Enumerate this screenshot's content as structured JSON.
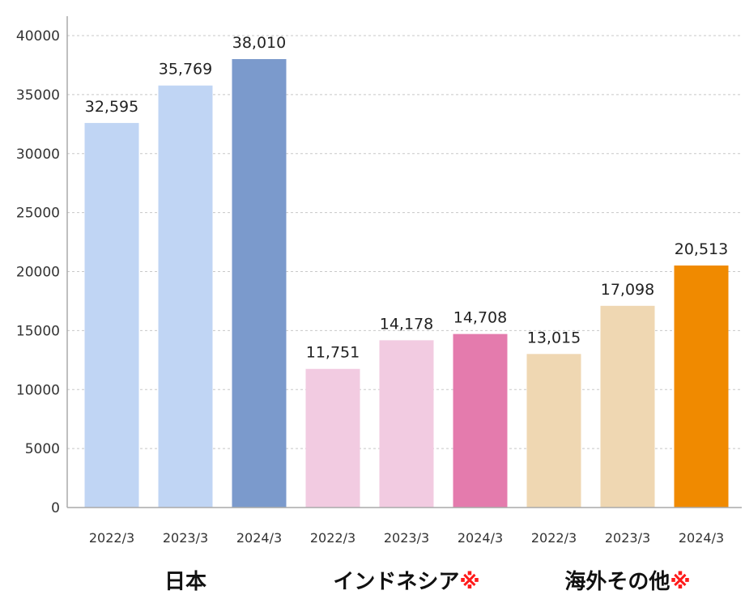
{
  "chart_data": {
    "type": "bar",
    "ylim": [
      0,
      40000
    ],
    "yticks": [
      0,
      5000,
      10000,
      15000,
      20000,
      25000,
      30000,
      35000,
      40000
    ],
    "grid": true,
    "groups": [
      {
        "label": "日本",
        "mark": "",
        "bars": [
          {
            "x": "2022/3",
            "value": 32595,
            "label": "32,595",
            "color": "#c0d5f4"
          },
          {
            "x": "2023/3",
            "value": 35769,
            "label": "35,769",
            "color": "#c0d5f4"
          },
          {
            "x": "2024/3",
            "value": 38010,
            "label": "38,010",
            "color": "#7b9acc"
          }
        ]
      },
      {
        "label": "インドネシア",
        "mark": "※",
        "bars": [
          {
            "x": "2022/3",
            "value": 11751,
            "label": "11,751",
            "color": "#f2cbe1"
          },
          {
            "x": "2023/3",
            "value": 14178,
            "label": "14,178",
            "color": "#f2cbe1"
          },
          {
            "x": "2024/3",
            "value": 14708,
            "label": "14,708",
            "color": "#e47bad"
          }
        ]
      },
      {
        "label": "海外その他",
        "mark": "※",
        "bars": [
          {
            "x": "2022/3",
            "value": 13015,
            "label": "13,015",
            "color": "#efd7b2"
          },
          {
            "x": "2023/3",
            "value": 17098,
            "label": "17,098",
            "color": "#efd7b2"
          },
          {
            "x": "2024/3",
            "value": 20513,
            "label": "20,513",
            "color": "#f08a00"
          }
        ]
      }
    ]
  }
}
